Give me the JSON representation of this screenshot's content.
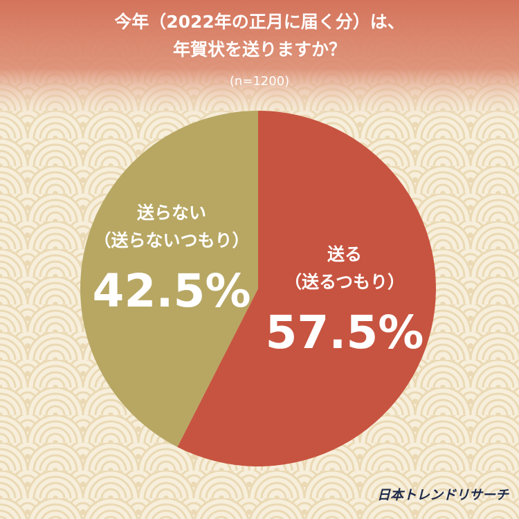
{
  "chart_data": {
    "type": "pie",
    "title": [
      "今年（2022年の正月に届く分）は、",
      "年賀状を送りますか？"
    ],
    "subtitle": "(n=1200)",
    "categories": [
      "送る",
      "送らない"
    ],
    "category_notes": [
      "（送るつもり）",
      "（送らないつもり）"
    ],
    "values": [
      57.5,
      42.5
    ],
    "value_labels": [
      "57.5%",
      "42.5%"
    ],
    "colors": [
      "#c75440",
      "#b7a763"
    ],
    "source": "日本トレンドリサーチ"
  }
}
